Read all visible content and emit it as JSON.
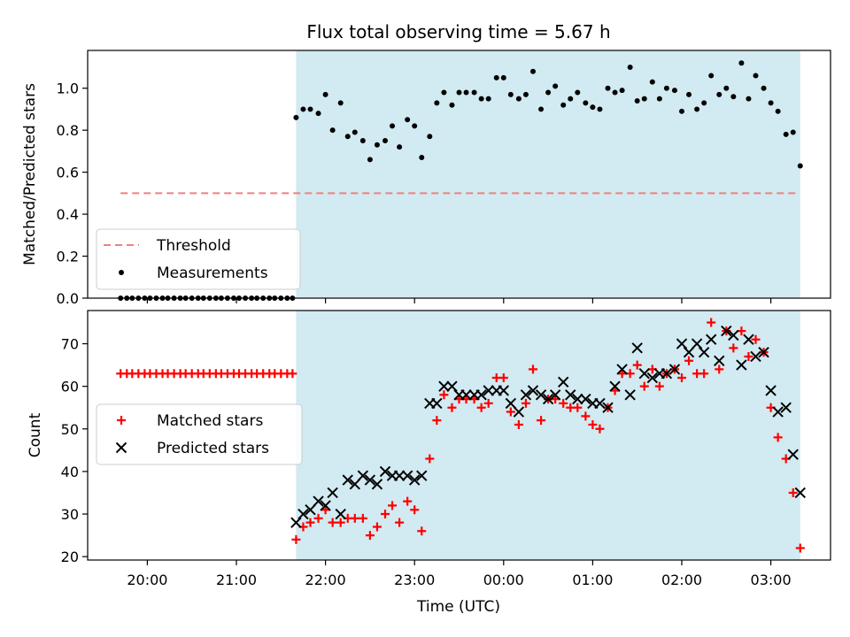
{
  "title": "Flux total observing time = 5.67 h",
  "xlabel": "Time (UTC)",
  "colors": {
    "shade": "#add8e6",
    "threshold": "#f08080",
    "measurements": "#000000",
    "matched": "#ff0000",
    "predicted": "#000000"
  },
  "chart_data": [
    {
      "type": "scatter",
      "ylabel": "Matched/Predicted stars",
      "xlim": [
        19.33,
        27.67
      ],
      "ylim": [
        0,
        1.18
      ],
      "yticks": [
        0.0,
        0.2,
        0.4,
        0.6,
        0.8,
        1.0
      ],
      "ytick_labels": [
        "0.0",
        "0.2",
        "0.4",
        "0.6",
        "0.8",
        "1.0"
      ],
      "observing_window": [
        21.67,
        27.33
      ],
      "legend": {
        "placement": "lower-left",
        "entries": [
          "Threshold",
          "Measurements"
        ]
      },
      "series": [
        {
          "name": "Threshold",
          "kind": "dashed-line",
          "x": [
            19.7,
            27.3
          ],
          "y": [
            0.5,
            0.5
          ]
        },
        {
          "name": "Measurements",
          "kind": "dots",
          "x": [
            19.7,
            19.77,
            19.83,
            19.9,
            19.97,
            20.03,
            20.1,
            20.17,
            20.23,
            20.3,
            20.37,
            20.43,
            20.5,
            20.57,
            20.63,
            20.7,
            20.77,
            20.83,
            20.9,
            20.97,
            21.03,
            21.1,
            21.17,
            21.23,
            21.3,
            21.37,
            21.43,
            21.5,
            21.57,
            21.63,
            21.67,
            21.75,
            21.83,
            21.92,
            22.0,
            22.08,
            22.17,
            22.25,
            22.33,
            22.42,
            22.5,
            22.58,
            22.67,
            22.75,
            22.83,
            22.92,
            23.0,
            23.08,
            23.17,
            23.25,
            23.33,
            23.42,
            23.5,
            23.58,
            23.67,
            23.75,
            23.83,
            23.92,
            24.0,
            24.08,
            24.17,
            24.25,
            24.33,
            24.42,
            24.5,
            24.58,
            24.67,
            24.75,
            24.83,
            24.92,
            25.0,
            25.08,
            25.17,
            25.25,
            25.33,
            25.42,
            25.5,
            25.58,
            25.67,
            25.75,
            25.83,
            25.92,
            26.0,
            26.08,
            26.17,
            26.25,
            26.33,
            26.42,
            26.5,
            26.58,
            26.67,
            26.75,
            26.83,
            26.92,
            27.0,
            27.08,
            27.17,
            27.25,
            27.33
          ],
          "y": [
            0,
            0,
            0,
            0,
            0,
            0,
            0,
            0,
            0,
            0,
            0,
            0,
            0,
            0,
            0,
            0,
            0,
            0,
            0,
            0,
            0,
            0,
            0,
            0,
            0,
            0,
            0,
            0,
            0,
            0,
            0.86,
            0.9,
            0.9,
            0.88,
            0.97,
            0.8,
            0.93,
            0.77,
            0.79,
            0.75,
            0.66,
            0.73,
            0.75,
            0.82,
            0.72,
            0.85,
            0.82,
            0.67,
            0.77,
            0.93,
            0.98,
            0.92,
            0.98,
            0.98,
            0.98,
            0.95,
            0.95,
            1.05,
            1.05,
            0.97,
            0.95,
            0.97,
            1.08,
            0.9,
            0.98,
            1.01,
            0.92,
            0.95,
            0.98,
            0.93,
            0.91,
            0.9,
            1.0,
            0.98,
            0.99,
            1.1,
            0.94,
            0.95,
            1.03,
            0.95,
            1.0,
            0.99,
            0.89,
            0.97,
            0.9,
            0.93,
            1.06,
            0.97,
            1.0,
            0.96,
            1.12,
            0.95,
            1.06,
            1.0,
            0.93,
            0.89,
            0.78,
            0.79,
            0.63
          ]
        }
      ]
    },
    {
      "type": "scatter",
      "ylabel": "Count",
      "xlim": [
        19.33,
        27.67
      ],
      "ylim": [
        19.2,
        77.8
      ],
      "yticks": [
        20,
        30,
        40,
        50,
        60,
        70
      ],
      "ytick_labels": [
        "20",
        "30",
        "40",
        "50",
        "60",
        "70"
      ],
      "xticks": [
        20,
        21,
        22,
        23,
        24,
        25,
        26,
        27
      ],
      "xtick_labels": [
        "20:00",
        "21:00",
        "22:00",
        "23:00",
        "00:00",
        "01:00",
        "02:00",
        "03:00"
      ],
      "observing_window": [
        21.67,
        27.33
      ],
      "legend": {
        "placement": "center-left",
        "entries": [
          "Matched stars",
          "Predicted stars"
        ]
      },
      "series": [
        {
          "name": "Matched stars",
          "marker": "+",
          "x": [
            19.7,
            19.77,
            19.83,
            19.9,
            19.97,
            20.03,
            20.1,
            20.17,
            20.23,
            20.3,
            20.37,
            20.43,
            20.5,
            20.57,
            20.63,
            20.7,
            20.77,
            20.83,
            20.9,
            20.97,
            21.03,
            21.1,
            21.17,
            21.23,
            21.3,
            21.37,
            21.43,
            21.5,
            21.57,
            21.63,
            21.67,
            21.75,
            21.83,
            21.92,
            22.0,
            22.08,
            22.17,
            22.25,
            22.33,
            22.42,
            22.5,
            22.58,
            22.67,
            22.75,
            22.83,
            22.92,
            23.0,
            23.08,
            23.17,
            23.25,
            23.33,
            23.42,
            23.5,
            23.58,
            23.67,
            23.75,
            23.83,
            23.92,
            24.0,
            24.08,
            24.17,
            24.25,
            24.33,
            24.42,
            24.5,
            24.58,
            24.67,
            24.75,
            24.83,
            24.92,
            25.0,
            25.08,
            25.17,
            25.25,
            25.33,
            25.42,
            25.5,
            25.58,
            25.67,
            25.75,
            25.83,
            25.92,
            26.0,
            26.08,
            26.17,
            26.25,
            26.33,
            26.42,
            26.5,
            26.58,
            26.67,
            26.75,
            26.83,
            26.92,
            27.0,
            27.08,
            27.17,
            27.25,
            27.33
          ],
          "y": [
            63,
            63,
            63,
            63,
            63,
            63,
            63,
            63,
            63,
            63,
            63,
            63,
            63,
            63,
            63,
            63,
            63,
            63,
            63,
            63,
            63,
            63,
            63,
            63,
            63,
            63,
            63,
            63,
            63,
            63,
            24,
            27,
            28,
            29,
            31,
            28,
            28,
            29,
            29,
            29,
            25,
            27,
            30,
            32,
            28,
            33,
            31,
            26,
            43,
            52,
            58,
            55,
            57,
            57,
            57,
            55,
            56,
            62,
            62,
            54,
            51,
            56,
            64,
            52,
            57,
            57,
            56,
            55,
            55,
            53,
            51,
            50,
            55,
            59,
            63,
            63,
            65,
            60,
            64,
            60,
            63,
            64,
            62,
            66,
            63,
            63,
            75,
            64,
            73,
            69,
            73,
            67,
            71,
            68,
            55,
            48,
            43,
            35,
            22
          ]
        },
        {
          "name": "Predicted stars",
          "marker": "x",
          "x": [
            21.67,
            21.75,
            21.83,
            21.92,
            22.0,
            22.08,
            22.17,
            22.25,
            22.33,
            22.42,
            22.5,
            22.58,
            22.67,
            22.75,
            22.83,
            22.92,
            23.0,
            23.08,
            23.17,
            23.25,
            23.33,
            23.42,
            23.5,
            23.58,
            23.67,
            23.75,
            23.83,
            23.92,
            24.0,
            24.08,
            24.17,
            24.25,
            24.33,
            24.42,
            24.5,
            24.58,
            24.67,
            24.75,
            24.83,
            24.92,
            25.0,
            25.08,
            25.17,
            25.25,
            25.33,
            25.42,
            25.5,
            25.58,
            25.67,
            25.75,
            25.83,
            25.92,
            26.0,
            26.08,
            26.17,
            26.25,
            26.33,
            26.42,
            26.5,
            26.58,
            26.67,
            26.75,
            26.83,
            26.92,
            27.0,
            27.08,
            27.17,
            27.25,
            27.33
          ],
          "y": [
            28,
            30,
            31,
            33,
            32,
            35,
            30,
            38,
            37,
            39,
            38,
            37,
            40,
            39,
            39,
            39,
            38,
            39,
            56,
            56,
            60,
            60,
            58,
            58,
            58,
            58,
            59,
            59,
            59,
            56,
            54,
            58,
            59,
            58,
            57,
            58,
            61,
            58,
            57,
            57,
            56,
            56,
            55,
            60,
            64,
            58,
            69,
            63,
            62,
            63,
            63,
            64,
            70,
            68,
            70,
            68,
            71,
            66,
            73,
            72,
            65,
            71,
            67,
            68,
            59,
            54,
            55,
            44,
            35
          ]
        }
      ]
    }
  ]
}
